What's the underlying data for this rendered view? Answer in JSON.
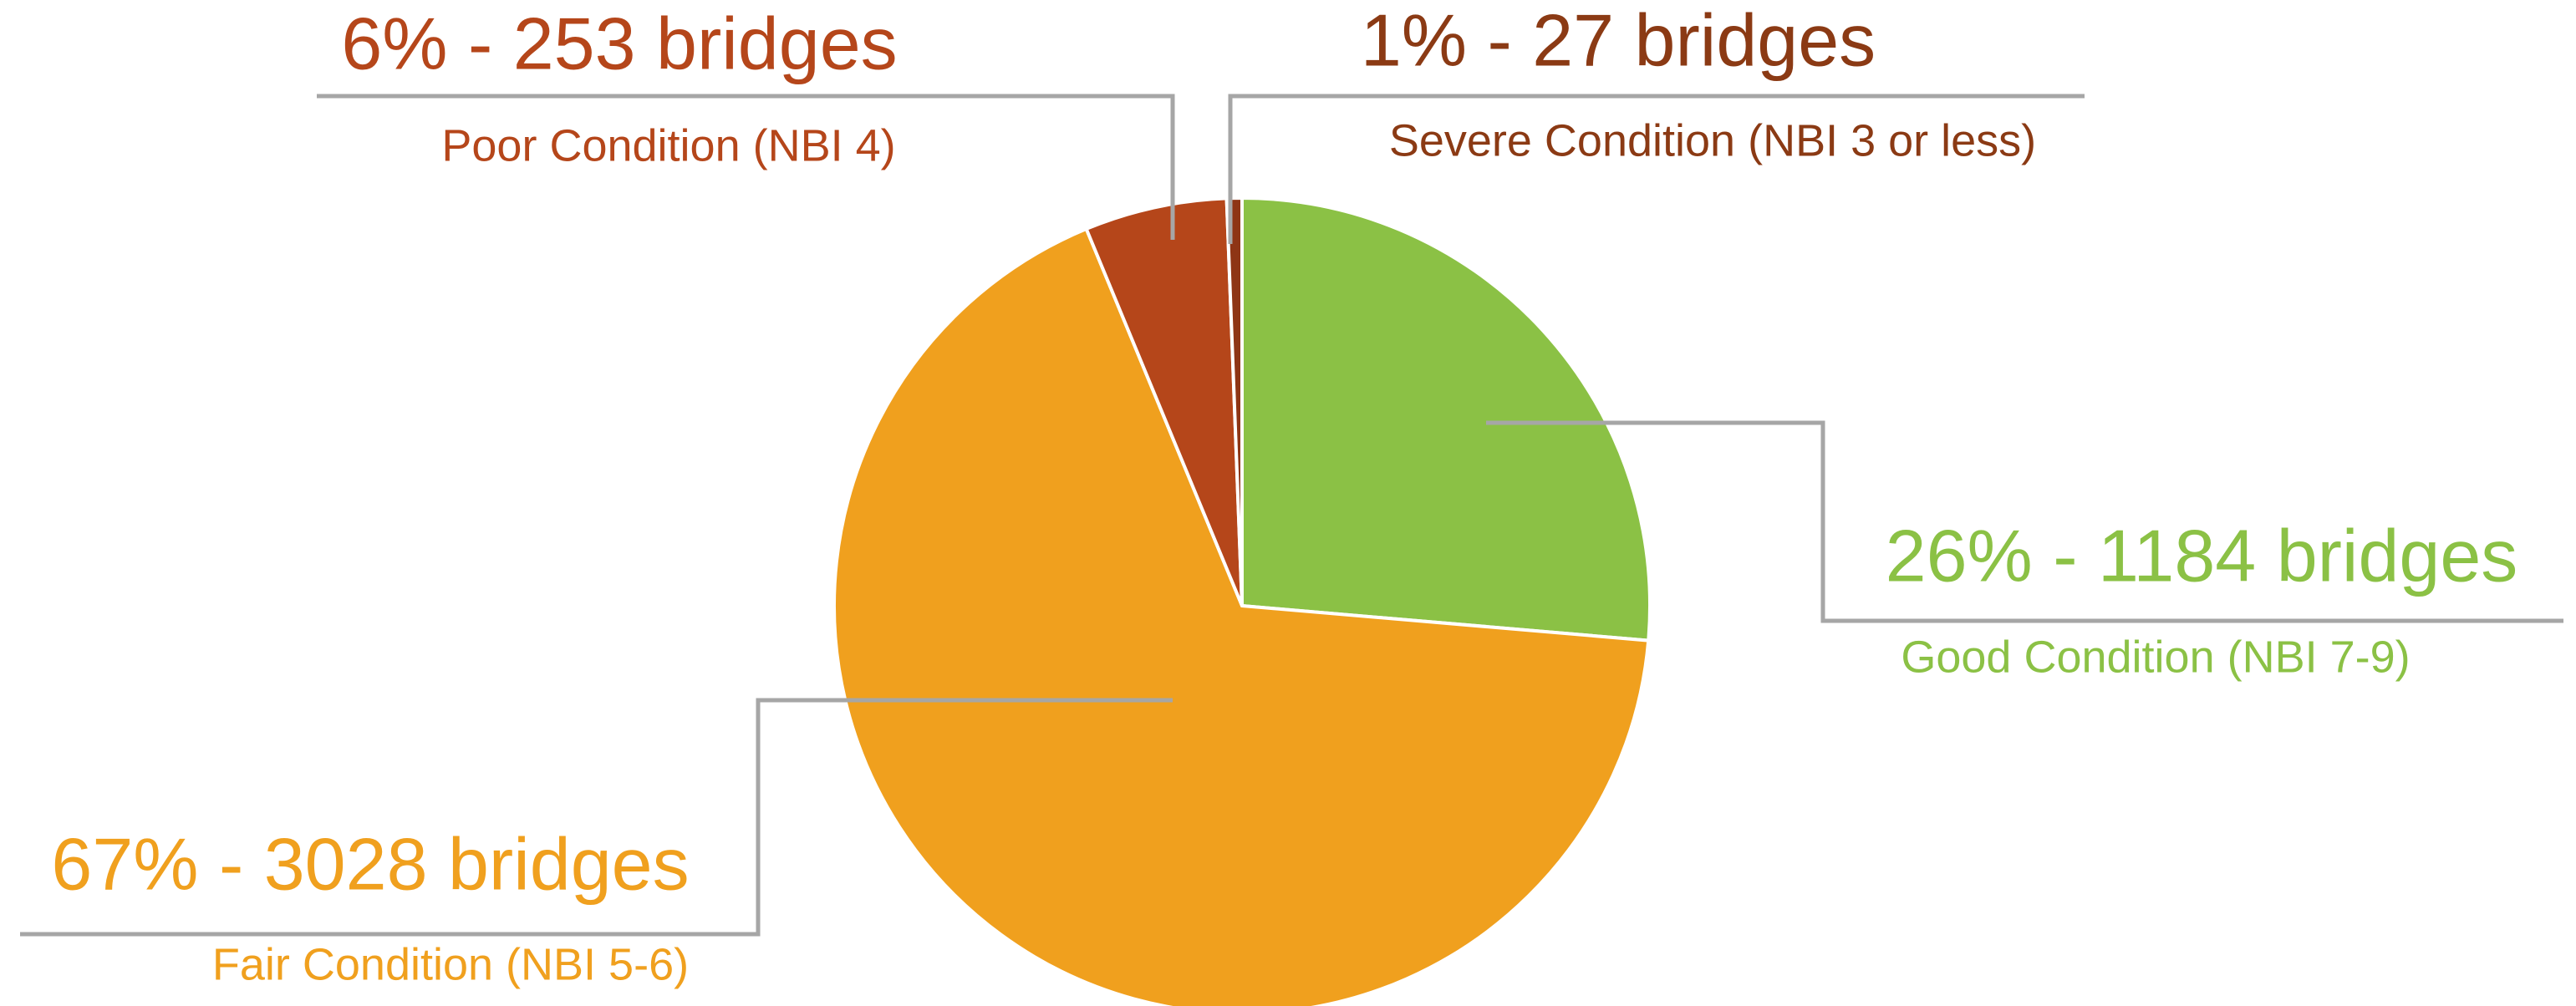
{
  "chart_data": {
    "type": "pie",
    "categories": [
      "Good Condition (NBI 7-9)",
      "Fair Condition (NBI 5-6)",
      "Poor Condition (NBI 4)",
      "Severe Condition (NBI 3 or less)"
    ],
    "values": [
      1184,
      3028,
      253,
      27
    ],
    "value_labels": [
      "26% - 1184 bridges",
      "67% - 3028 bridges",
      "6% - 253 bridges",
      "1% - 27 bridges"
    ],
    "colors": [
      "#8BC145",
      "#F0A01E",
      "#B5461A",
      "#8E3515"
    ]
  }
}
